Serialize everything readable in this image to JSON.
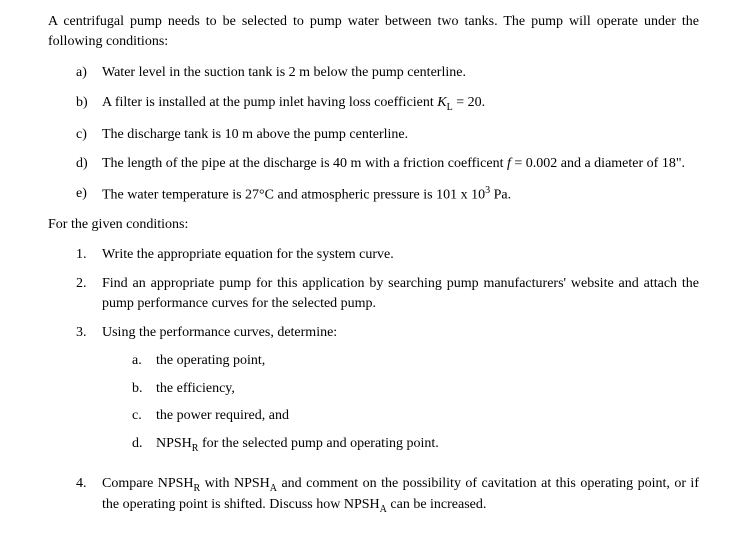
{
  "intro": "A centrifugal pump needs to be selected to pump water between two tanks. The pump will operate under the following conditions:",
  "conditions": {
    "a": {
      "marker": "a)",
      "text": "Water level in the suction tank is 2 m below the pump centerline."
    },
    "b": {
      "marker": "b)",
      "text_pre": "A filter is installed at the pump inlet having loss coefficient ",
      "var": "K",
      "sub": "L",
      "text_post": " = 20."
    },
    "c": {
      "marker": "c)",
      "text": "The discharge tank is 10 m above the pump centerline."
    },
    "d": {
      "marker": "d)",
      "text_pre": "The length of the pipe at the discharge is 40 m with a friction coefficent ",
      "var": "f",
      "text_post": " = 0.002 and a diameter of 18\"."
    },
    "e": {
      "marker": "e)",
      "text_pre": "The water temperature is 27°C and atmospheric pressure is 101 x 10",
      "sup": "3",
      "text_post": " Pa."
    }
  },
  "section_label": "For the given conditions:",
  "tasks": {
    "t1": {
      "marker": "1.",
      "text": "Write the appropriate equation for the system curve."
    },
    "t2": {
      "marker": "2.",
      "text": "Find an appropriate pump for this application by searching pump manufacturers' website and attach the pump performance curves for the selected pump."
    },
    "t3": {
      "marker": "3.",
      "text": "Using the performance curves, determine:"
    },
    "t3a": {
      "marker": "a.",
      "text": "the operating point,"
    },
    "t3b": {
      "marker": "b.",
      "text": "the efficiency,"
    },
    "t3c": {
      "marker": "c.",
      "text": "the power required, and"
    },
    "t3d": {
      "marker": "d.",
      "text_pre": "NPSH",
      "sub": "R",
      "text_post": " for the selected pump and operating point."
    },
    "t4": {
      "marker": "4.",
      "text_pre": "Compare NPSH",
      "sub1": "R",
      "text_mid": " with NPSH",
      "sub2": "A",
      "text_mid2": " and comment on the possibility of cavitation at this operating point, or if the operating point is shifted. Discuss how NPSH",
      "sub3": "A",
      "text_post": " can be increased."
    }
  }
}
